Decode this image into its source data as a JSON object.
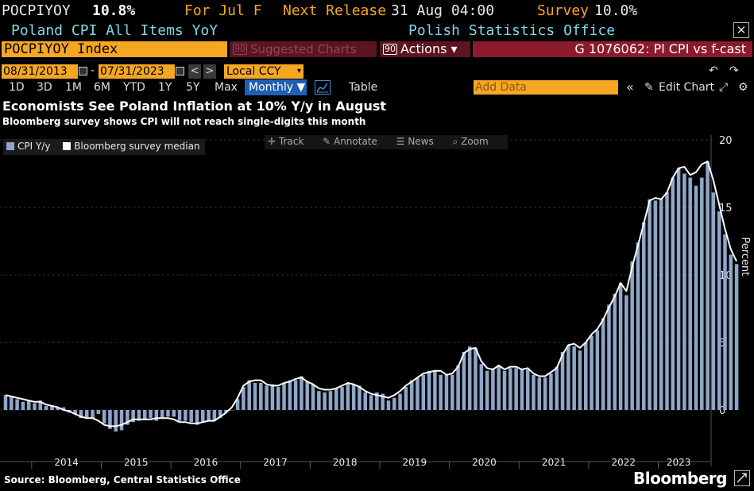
{
  "header": {
    "ticker": "POCPIYOY",
    "value": "10.8%",
    "period": "For Jul F",
    "next_release": "Next Release",
    "next_release_date": "31 Aug 04:00",
    "survey_label": "Survey",
    "survey_value": "10.0%",
    "description": "Poland CPI All Items YoY",
    "source_agency": "Polish Statistics Office"
  },
  "toolbar": {
    "index": "POCPIYOY Index",
    "suggested": "Suggested Charts",
    "actions": "Actions",
    "actions_caret": "▾",
    "graph_title": "G 1076062: Pl CPI vs f-cast",
    "badge": "90",
    "start_date": "08/31/2013",
    "end_date": "07/31/2023",
    "date_sep": "-",
    "currency": "Local CCY",
    "caret": "▾",
    "timeframes": [
      "1D",
      "3D",
      "1M",
      "6M",
      "YTD",
      "1Y",
      "5Y",
      "Max"
    ],
    "periodicity": "Monthly",
    "periodicity_caret": "▼",
    "table": "Table",
    "add_data_placeholder": "Add Data",
    "edit_chart": "Edit Chart",
    "collapse": "«",
    "prev": "<",
    "next": ">"
  },
  "chart_tools": {
    "track": "Track",
    "annotate": "Annotate",
    "news": "News",
    "zoom": "Zoom"
  },
  "legend": {
    "series1": "CPI Y/y",
    "series2": "Bloomberg survey median"
  },
  "footer": {
    "source": "Source: Bloomberg, Central Statistics Office",
    "brand": "Bloomberg"
  },
  "colors": {
    "bars": "#8ea6c8",
    "line": "#ffffff",
    "accent_orange": "#f5a623",
    "maroon": "#5c1420",
    "header_cyan": "#7fd8e8"
  },
  "chart_data": {
    "type": "bar",
    "title": "Economists See Poland Inflation at 10% Y/y in August",
    "subtitle": "Bloomberg survey shows CPI will not reach single-digits this month",
    "ylabel": "Percent",
    "ylim": [
      -3.0,
      20.0
    ],
    "yticks": [
      0,
      5,
      10,
      15,
      20
    ],
    "x_tick_labels": [
      "2014",
      "2015",
      "2016",
      "2017",
      "2018",
      "2019",
      "2020",
      "2021",
      "2022",
      "2023"
    ],
    "start": "2013-08",
    "end": "2023-07",
    "grid": true,
    "series": [
      {
        "name": "CPI Y/y",
        "type": "bar",
        "values": [
          1.1,
          1.0,
          0.8,
          0.6,
          0.7,
          0.5,
          0.7,
          0.3,
          0.3,
          0.2,
          0.2,
          -0.2,
          -0.3,
          -0.6,
          -0.6,
          -0.6,
          -0.3,
          -1.0,
          -1.4,
          -1.6,
          -1.5,
          -1.1,
          -0.9,
          -0.8,
          -0.7,
          -0.6,
          -0.8,
          -0.6,
          -0.5,
          -0.5,
          -0.8,
          -0.8,
          -0.9,
          -1.1,
          -0.9,
          -0.8,
          -0.8,
          -0.6,
          -0.2,
          0.0,
          0.8,
          1.7,
          2.2,
          2.0,
          2.0,
          1.8,
          1.9,
          1.7,
          2.0,
          2.2,
          2.2,
          2.5,
          2.1,
          1.9,
          1.4,
          1.3,
          1.4,
          1.6,
          1.7,
          2.0,
          1.9,
          1.8,
          1.3,
          1.1,
          1.3,
          1.2,
          0.7,
          0.9,
          1.2,
          1.7,
          2.2,
          2.4,
          2.6,
          2.9,
          2.9,
          2.6,
          2.6,
          2.6,
          3.3,
          4.3,
          4.7,
          4.6,
          3.4,
          2.9,
          3.0,
          3.3,
          2.9,
          3.1,
          3.1,
          3.0,
          3.0,
          2.6,
          2.4,
          2.4,
          2.7,
          3.2,
          4.3,
          4.8,
          4.7,
          4.4,
          5.0,
          5.5,
          5.9,
          6.8,
          7.8,
          8.6,
          9.4,
          8.5,
          11.0,
          12.4,
          13.9,
          15.6,
          15.5,
          15.6,
          16.1,
          17.2,
          17.9,
          17.5,
          17.2,
          16.6,
          17.2,
          18.4,
          16.1,
          14.7,
          13.0,
          11.5,
          10.8
        ]
      },
      {
        "name": "Bloomberg survey median",
        "type": "line",
        "values": [
          1.1,
          1.0,
          0.9,
          0.8,
          0.7,
          0.6,
          0.6,
          0.4,
          0.3,
          0.2,
          0.0,
          -0.1,
          -0.3,
          -0.5,
          -0.6,
          -0.6,
          -0.8,
          -1.1,
          -1.2,
          -1.2,
          -1.1,
          -0.9,
          -0.7,
          -0.7,
          -0.7,
          -0.7,
          -0.6,
          -0.6,
          -0.6,
          -0.7,
          -0.9,
          -0.9,
          -1.0,
          -1.0,
          -0.9,
          -0.8,
          -0.8,
          -0.5,
          -0.2,
          0.2,
          0.9,
          1.8,
          2.1,
          2.2,
          2.2,
          1.9,
          1.8,
          1.8,
          2.0,
          2.1,
          2.3,
          2.4,
          2.1,
          1.9,
          1.6,
          1.5,
          1.5,
          1.6,
          1.8,
          2.0,
          1.9,
          1.7,
          1.4,
          1.2,
          1.1,
          1.0,
          0.9,
          1.1,
          1.4,
          1.8,
          2.1,
          2.4,
          2.7,
          2.8,
          2.9,
          2.9,
          2.6,
          2.7,
          3.2,
          4.2,
          4.5,
          4.6,
          3.6,
          3.1,
          3.0,
          3.3,
          3.0,
          3.2,
          3.2,
          3.0,
          3.1,
          2.7,
          2.5,
          2.5,
          2.8,
          3.1,
          4.1,
          4.8,
          4.9,
          4.6,
          5.0,
          5.6,
          6.0,
          6.7,
          7.6,
          8.4,
          9.4,
          8.8,
          10.6,
          12.2,
          13.8,
          15.5,
          15.7,
          15.6,
          16.1,
          17.2,
          17.9,
          18.0,
          17.4,
          17.6,
          18.2,
          18.4,
          17.0,
          15.2,
          13.4,
          11.9,
          11.0
        ]
      }
    ]
  }
}
